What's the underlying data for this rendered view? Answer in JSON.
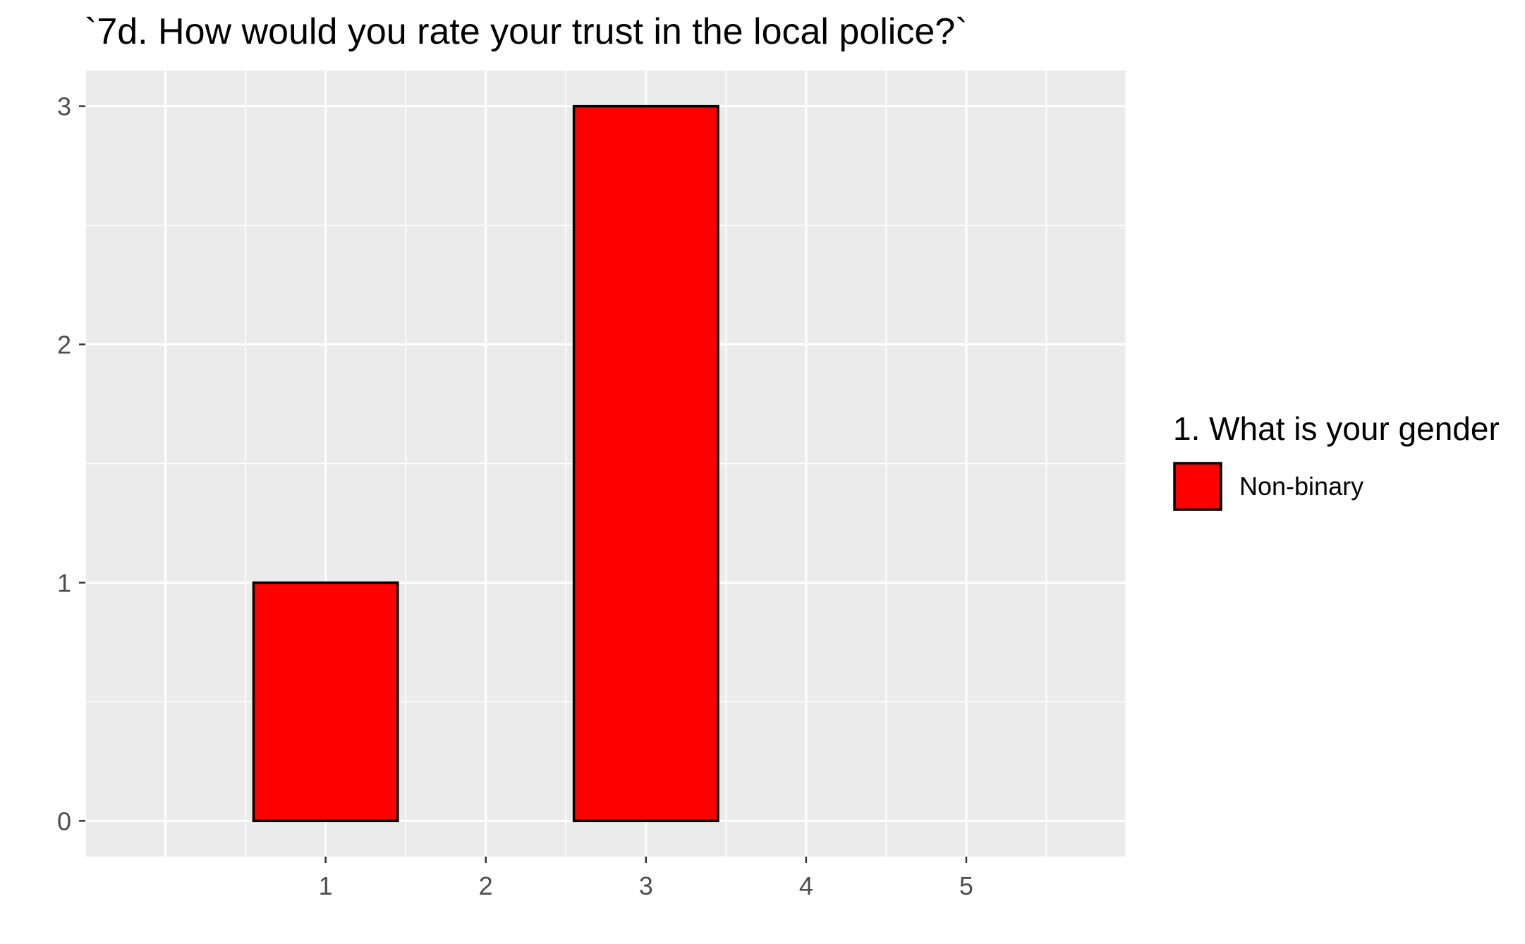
{
  "chart_data": {
    "type": "bar",
    "title": "`7d. How would you rate your trust in the local police?`",
    "xlabel": "",
    "ylabel": "",
    "x_ticks": [
      1,
      2,
      3,
      4,
      5
    ],
    "y_ticks": [
      0,
      1,
      2,
      3
    ],
    "xlim": [
      -0.5,
      6.0
    ],
    "ylim": [
      -0.15,
      3.15
    ],
    "grid": true,
    "legend": {
      "title": "1. What is your gender",
      "placement": "right",
      "entries": [
        {
          "name": "Non-binary",
          "color": "#FF0000"
        }
      ]
    },
    "series": [
      {
        "name": "Non-binary",
        "color": "#FF0000",
        "points": [
          {
            "x": 1,
            "y": 1
          },
          {
            "x": 3,
            "y": 3
          }
        ]
      }
    ],
    "colors": {
      "panel_background": "#EBEBEB",
      "grid_line": "#FFFFFF",
      "bar_outline": "#000000",
      "tick_label": "#4D4D4D"
    }
  }
}
